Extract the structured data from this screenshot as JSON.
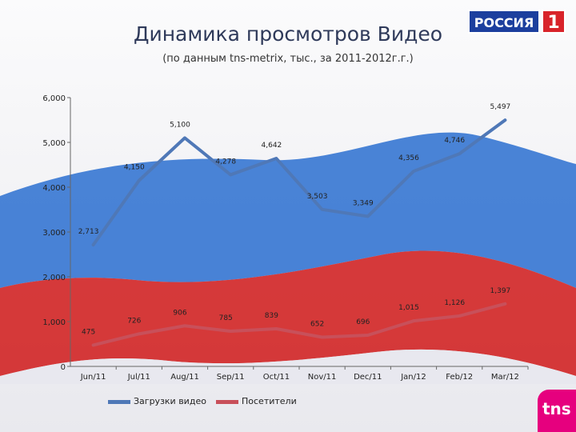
{
  "header": {
    "title": "Динамика просмотров Видео",
    "subtitle": "(по данным tns-metrix, тыс., за 2011-2012г.г.)",
    "brand_logo_text": "РОССИЯ",
    "brand_logo_number": "1",
    "tns_logo_text": "tns"
  },
  "colors": {
    "series1": "#4f78b7",
    "series2": "#c8505a",
    "brand_blue": "#1c3f9e",
    "brand_red": "#d8232a",
    "tns_magenta": "#e6007e"
  },
  "chart_data": {
    "type": "line",
    "title": "Динамика просмотров Видео",
    "subtitle": "(по данным tns-metrix, тыс., за 2011-2012г.г.)",
    "xlabel": "",
    "ylabel": "",
    "categories": [
      "Jun/11",
      "Jul/11",
      "Aug/11",
      "Sep/11",
      "Oct/11",
      "Nov/11",
      "Dec/11",
      "Jan/12",
      "Feb/12",
      "Mar/12"
    ],
    "ylim": [
      0,
      6000
    ],
    "yticks": [
      "0",
      "1,000",
      "2,000",
      "3,000",
      "4,000",
      "5,000",
      "6,000"
    ],
    "grid": false,
    "legend_position": "bottom",
    "series": [
      {
        "name": "Загрузки видео",
        "values": [
          2713,
          4150,
          5100,
          4278,
          4642,
          3503,
          3349,
          4356,
          4746,
          5497
        ],
        "labels": [
          "2,713",
          "4,150",
          "5,100",
          "4,278",
          "4,642",
          "3,503",
          "3,349",
          "4,356",
          "4,746",
          "5,497"
        ]
      },
      {
        "name": "Посетители",
        "values": [
          475,
          726,
          906,
          785,
          839,
          652,
          696,
          1015,
          1126,
          1397
        ],
        "labels": [
          "475",
          "726",
          "906",
          "785",
          "839",
          "652",
          "696",
          "1,015",
          "1,126",
          "1,397"
        ]
      }
    ]
  }
}
